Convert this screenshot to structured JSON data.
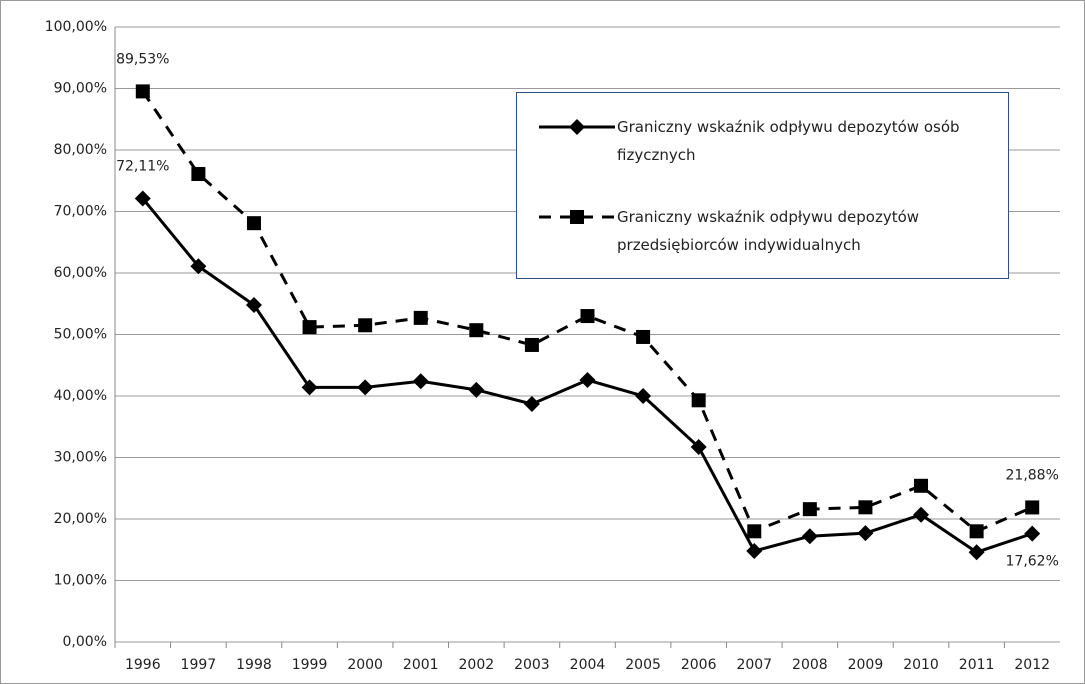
{
  "chart_data": {
    "type": "line",
    "categories": [
      "1996",
      "1997",
      "1998",
      "1999",
      "2000",
      "2001",
      "2002",
      "2003",
      "2004",
      "2005",
      "2006",
      "2007",
      "2008",
      "2009",
      "2010",
      "2011",
      "2012"
    ],
    "series": [
      {
        "name": "Graniczny wskaźnik odpływu depozytów osób fizycznych",
        "color": "#000000",
        "dash": false,
        "marker": "diamond",
        "values": [
          72.11,
          61.1,
          54.8,
          41.4,
          41.4,
          42.4,
          41.0,
          38.7,
          42.6,
          40.0,
          31.7,
          14.8,
          17.2,
          17.7,
          20.7,
          14.6,
          17.62
        ],
        "value_labels": [
          "72,11%",
          null,
          null,
          null,
          null,
          null,
          null,
          null,
          null,
          null,
          null,
          null,
          null,
          null,
          null,
          null,
          "17,62%"
        ]
      },
      {
        "name": "Graniczny wskaźnik odpływu depozytów przedsiębiorców indywidualnych",
        "color": "#000000",
        "dash": true,
        "marker": "square",
        "values": [
          89.53,
          76.1,
          68.1,
          51.2,
          51.5,
          52.7,
          50.7,
          48.3,
          53.0,
          49.6,
          39.3,
          18.0,
          21.6,
          21.9,
          25.4,
          18.0,
          21.88
        ],
        "value_labels": [
          "89,53%",
          null,
          null,
          null,
          null,
          null,
          null,
          null,
          null,
          null,
          null,
          null,
          null,
          null,
          null,
          null,
          "21,88%"
        ]
      }
    ],
    "ylim": [
      0,
      100
    ],
    "yticks": [
      {
        "value": 0,
        "label": "0,00%"
      },
      {
        "value": 10,
        "label": "10,00%"
      },
      {
        "value": 20,
        "label": "20,00%"
      },
      {
        "value": 30,
        "label": "30,00%"
      },
      {
        "value": 40,
        "label": "40,00%"
      },
      {
        "value": 50,
        "label": "50,00%"
      },
      {
        "value": 60,
        "label": "60,00%"
      },
      {
        "value": 70,
        "label": "70,00%"
      },
      {
        "value": 80,
        "label": "80,00%"
      },
      {
        "value": 90,
        "label": "90,00%"
      },
      {
        "value": 100,
        "label": "100,00%"
      }
    ],
    "grid": true,
    "legend": "upper right"
  }
}
